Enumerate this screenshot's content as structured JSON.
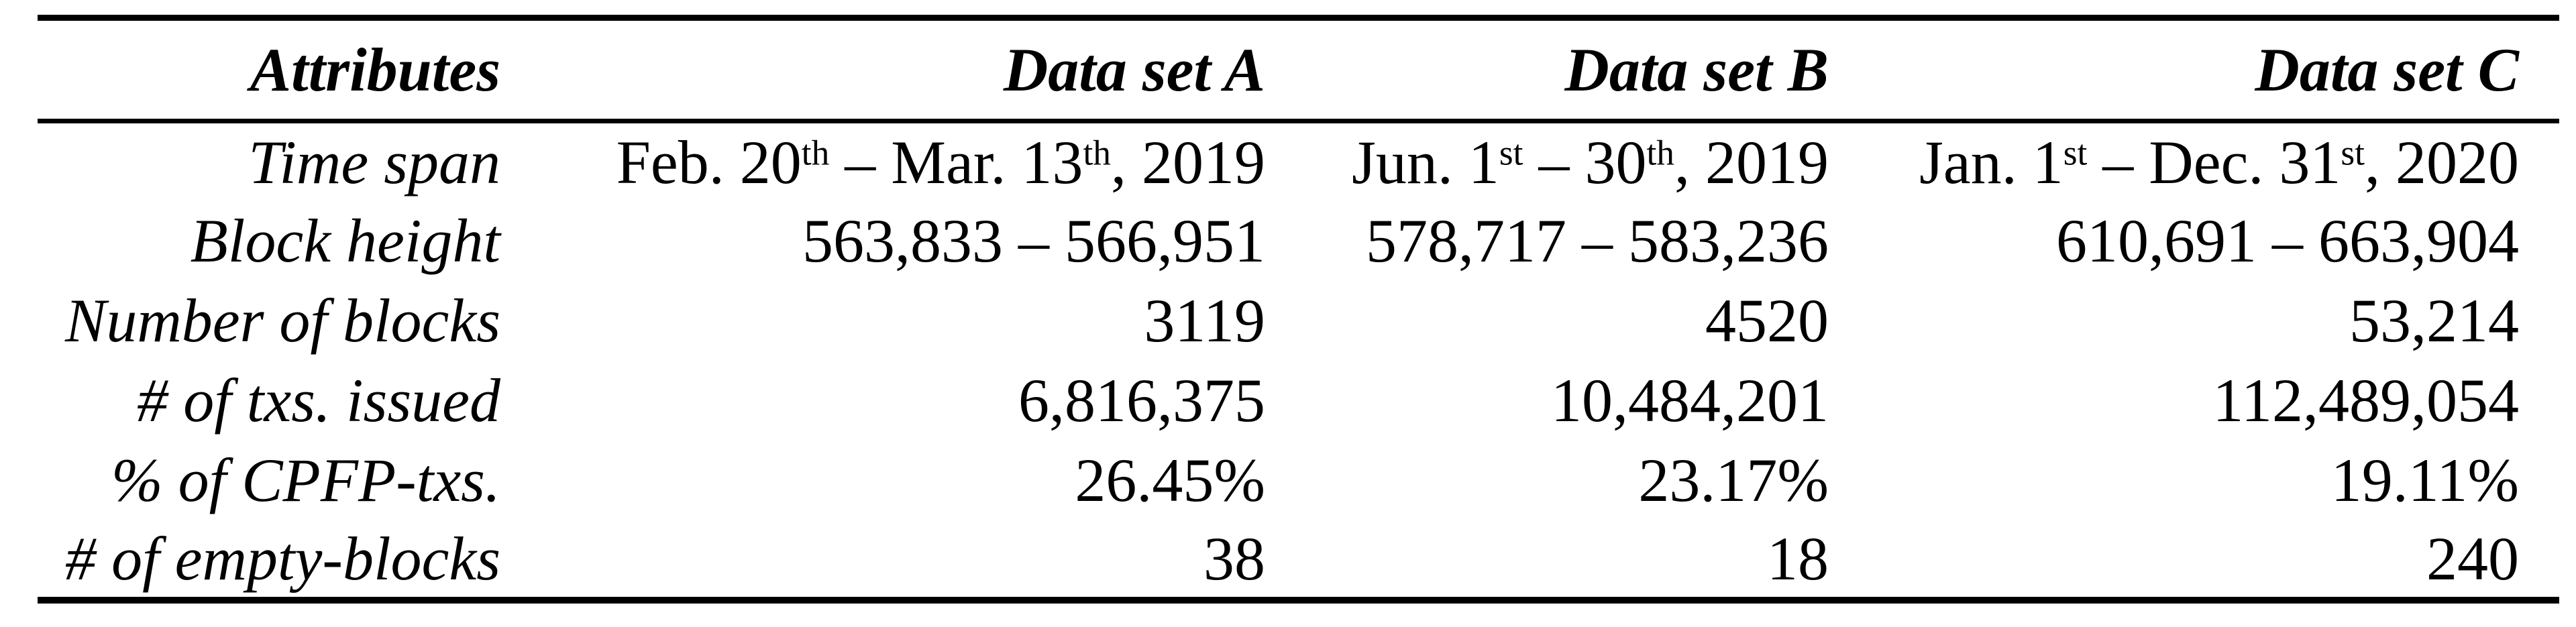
{
  "colors": {
    "background": "#ffffff",
    "text": "#000000",
    "rule": "#000000"
  },
  "table": {
    "header": {
      "attributes": "Attributes",
      "dataset_a": {
        "prefix": "Data set ",
        "letter": "A"
      },
      "dataset_b": {
        "prefix": "Data set ",
        "letter": "B"
      },
      "dataset_c": {
        "prefix": "Data set ",
        "letter": "C"
      }
    },
    "rows": [
      {
        "attribute": "Time span",
        "cells": [
          {
            "parts": [
              "Feb. 20",
              "th",
              " – Mar. 13",
              "th",
              ", 2019"
            ]
          },
          {
            "parts": [
              "Jun. 1",
              "st",
              " – 30",
              "th",
              ", 2019"
            ]
          },
          {
            "parts": [
              "Jan. 1",
              "st",
              " – Dec. 31",
              "st",
              ", 2020"
            ]
          }
        ]
      },
      {
        "attribute": "Block height",
        "cells": [
          "563,833 – 566,951",
          "578,717 – 583,236",
          "610,691 – 663,904"
        ]
      },
      {
        "attribute": "Number of blocks",
        "cells": [
          "3119",
          "4520",
          "53,214"
        ]
      },
      {
        "attribute": "# of txs. issued",
        "cells": [
          "6,816,375",
          "10,484,201",
          "112,489,054"
        ]
      },
      {
        "attribute": "% of CPFP-txs.",
        "cells": [
          "26.45%",
          "23.17%",
          "19.11%"
        ]
      },
      {
        "attribute": "# of empty-blocks",
        "cells": [
          "38",
          "18",
          "240"
        ]
      }
    ]
  }
}
